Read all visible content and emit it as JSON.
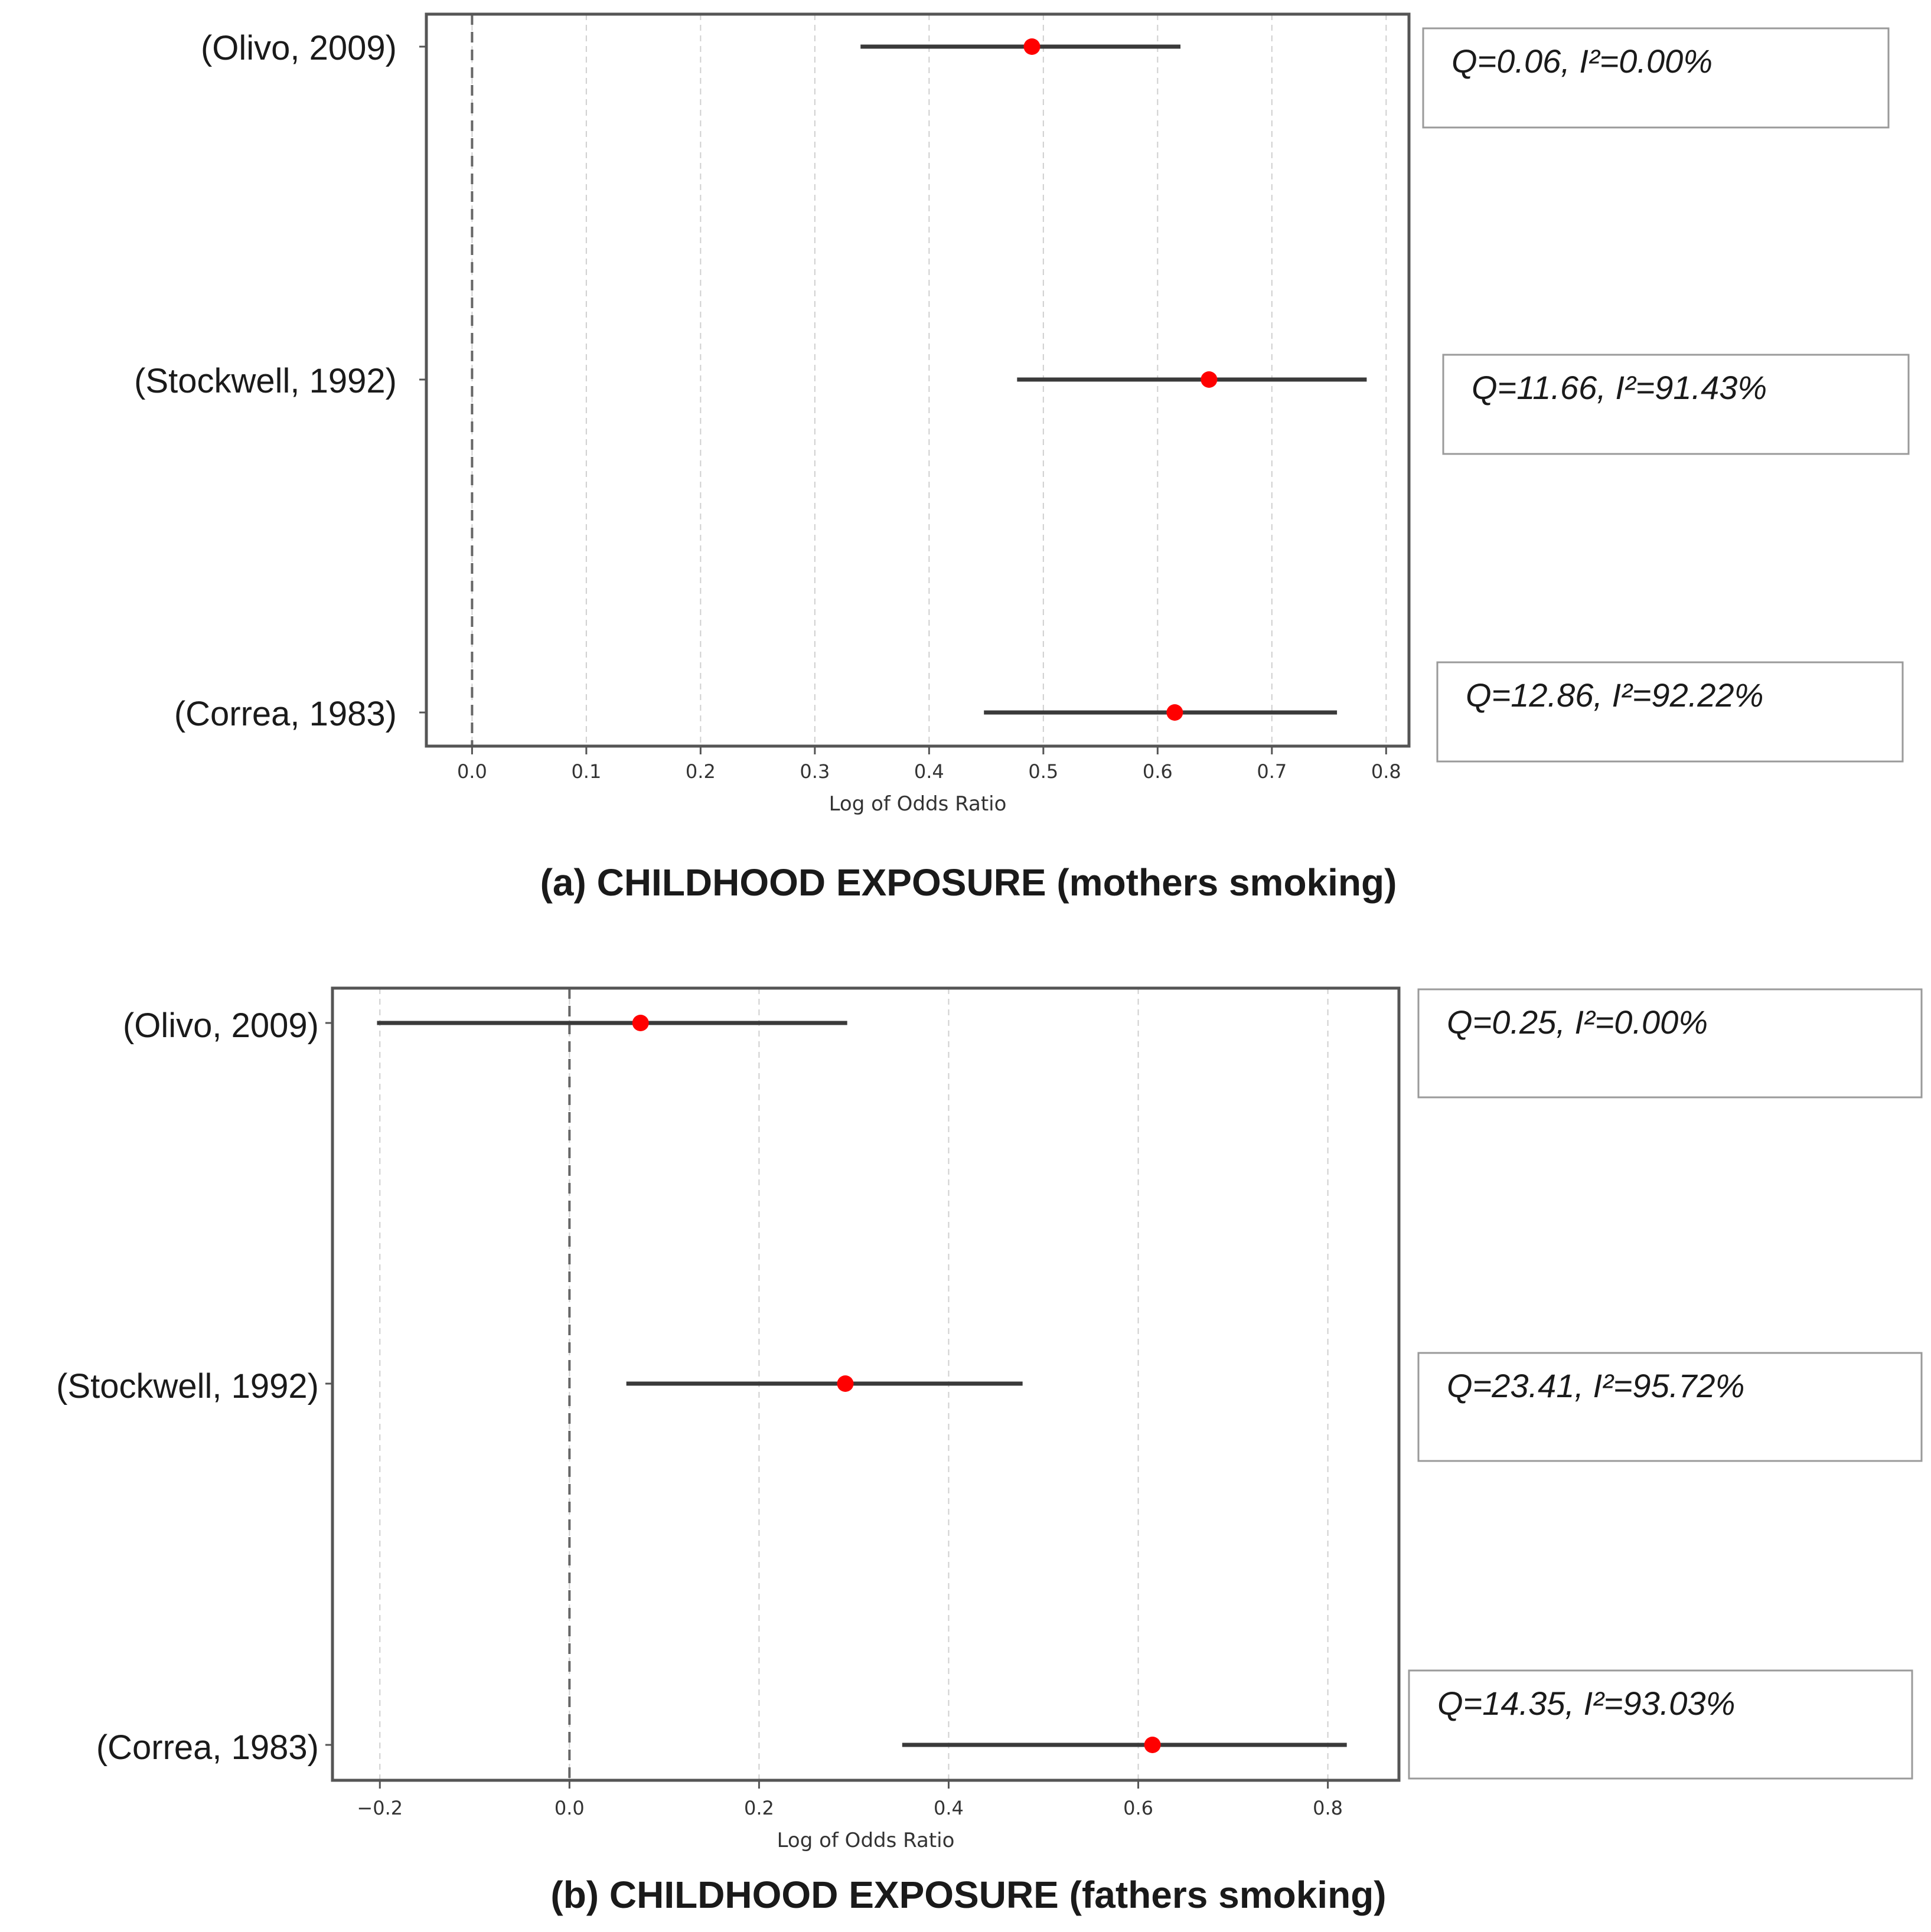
{
  "chart_data": [
    {
      "type": "forest",
      "caption": "(a) CHILDHOOD EXPOSURE (mothers smoking)",
      "xlabel": "Log of Odds Ratio",
      "xlim": [
        -0.04,
        0.82
      ],
      "xticks": [
        0.0,
        0.1,
        0.2,
        0.3,
        0.4,
        0.5,
        0.6,
        0.7,
        0.8
      ],
      "xtick_labels": [
        "0.0",
        "0.1",
        "0.2",
        "0.3",
        "0.4",
        "0.5",
        "0.6",
        "0.7",
        "0.8"
      ],
      "reference_line": 0.0,
      "grid": "vertical dashed",
      "studies": [
        {
          "label": "(Olivo, 2009)",
          "estimate": 0.49,
          "ci_low": 0.34,
          "ci_high": 0.62,
          "stat": "Q=0.06, I²=0.00%"
        },
        {
          "label": "(Stockwell, 1992)",
          "estimate": 0.645,
          "ci_low": 0.477,
          "ci_high": 0.783,
          "stat": "Q=11.66, I²=91.43%"
        },
        {
          "label": "(Correa, 1983)",
          "estimate": 0.615,
          "ci_low": 0.448,
          "ci_high": 0.757,
          "stat": "Q=12.86, I²=92.22%"
        }
      ]
    },
    {
      "type": "forest",
      "caption": "(b) CHILDHOOD EXPOSURE (fathers smoking)",
      "xlabel": "Log of Odds Ratio",
      "xlim": [
        -0.25,
        0.875
      ],
      "xticks": [
        -0.2,
        0.0,
        0.2,
        0.4,
        0.6,
        0.8
      ],
      "xtick_labels": [
        "−0.2",
        "0.0",
        "0.2",
        "0.4",
        "0.6",
        "0.8"
      ],
      "reference_line": 0.0,
      "grid": "vertical dashed",
      "studies": [
        {
          "label": "(Olivo, 2009)",
          "estimate": 0.075,
          "ci_low": -0.203,
          "ci_high": 0.293,
          "stat": "Q=0.25, I²=0.00%"
        },
        {
          "label": "(Stockwell, 1992)",
          "estimate": 0.291,
          "ci_low": 0.06,
          "ci_high": 0.478,
          "stat": "Q=23.41, I²=95.72%"
        },
        {
          "label": "(Correa, 1983)",
          "estimate": 0.615,
          "ci_low": 0.351,
          "ci_high": 0.82,
          "stat": "Q=14.35, I²=93.03%"
        }
      ]
    }
  ]
}
